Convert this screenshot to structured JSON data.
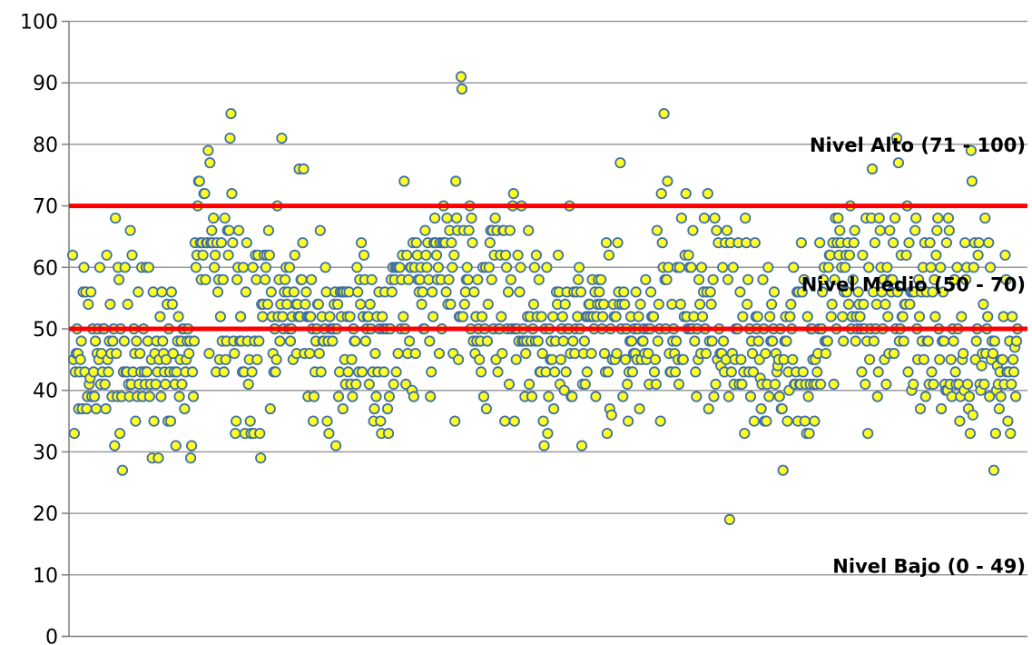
{
  "chart_data": {
    "type": "scatter",
    "title": "",
    "xlabel": "",
    "ylabel": "",
    "ylim": [
      0,
      100
    ],
    "yticks": [
      0,
      10,
      20,
      30,
      40,
      50,
      60,
      70,
      80,
      90,
      100
    ],
    "grid": true,
    "colors": {
      "marker_fill": "#ffff22",
      "marker_edge": "#3f6fa8",
      "reference_line": "#ff0000",
      "grid": "#9a9a9a"
    },
    "reference_lines": [
      70,
      50
    ],
    "annotations": [
      {
        "text": "Nivel  Alto (71 - 100)",
        "y": 80
      },
      {
        "text": "Nivel  Medio (50 - 70)",
        "y": 57.3
      },
      {
        "text": "Nivel  Bajo (0 - 49)",
        "y": 11.5
      }
    ],
    "series": [
      {
        "values": [
          62,
          45,
          33,
          43,
          46,
          50,
          46,
          37,
          43,
          45,
          48,
          37,
          56,
          60,
          43,
          56,
          37,
          39,
          54,
          41,
          42,
          56,
          39,
          50,
          43,
          39,
          48,
          37,
          46,
          50,
          45,
          60,
          41,
          46,
          43,
          50,
          50,
          41,
          37,
          62,
          45,
          43,
          48,
          54,
          46,
          39,
          48,
          50,
          31,
          68,
          46,
          39,
          60,
          58,
          33,
          50,
          39,
          27,
          43,
          48,
          60,
          43,
          43,
          54,
          41,
          39,
          66,
          41,
          62,
          43,
          50,
          46,
          35,
          48,
          39,
          56,
          41,
          46,
          43,
          60,
          39,
          50,
          43,
          41,
          60,
          43,
          48,
          60,
          39,
          41,
          45,
          29,
          56,
          35,
          46,
          41,
          48,
          43,
          29,
          45,
          52,
          39,
          56,
          48,
          46,
          43,
          41,
          45,
          54,
          35,
          50,
          43,
          35,
          56,
          54,
          46,
          43,
          41,
          31,
          43,
          48,
          52,
          39,
          45,
          48,
          41,
          50,
          50,
          37,
          43,
          45,
          48,
          50,
          46,
          48,
          29,
          31,
          43,
          39,
          48,
          64,
          60,
          62,
          70,
          74,
          74,
          64,
          58,
          64,
          62,
          72,
          72,
          58,
          64,
          64,
          79,
          46,
          77,
          64,
          66,
          64,
          68,
          60,
          62,
          43,
          64,
          56,
          58,
          45,
          52,
          64,
          48,
          58,
          43,
          68,
          45,
          48,
          66,
          62,
          66,
          81,
          85,
          72,
          64,
          48,
          46,
          33,
          35,
          58,
          60,
          66,
          48,
          52,
          48,
          43,
          60,
          43,
          33,
          56,
          64,
          48,
          41,
          45,
          35,
          33,
          43,
          60,
          33,
          48,
          62,
          58,
          45,
          62,
          48,
          33,
          29,
          54,
          52,
          54,
          62,
          58,
          60,
          62,
          54,
          66,
          62,
          37,
          56,
          52,
          46,
          43,
          50,
          43,
          45,
          70,
          52,
          58,
          48,
          54,
          81,
          52,
          50,
          56,
          58,
          60,
          54,
          56,
          50,
          60,
          48,
          50,
          52,
          45,
          56,
          62,
          54,
          46,
          54,
          52,
          76,
          52,
          58,
          58,
          64,
          76,
          46,
          54,
          56,
          52,
          39,
          52,
          46,
          52,
          58,
          50,
          35,
          39,
          43,
          48,
          50,
          54,
          54,
          46,
          66,
          43,
          52,
          48,
          48,
          50,
          60,
          56,
          35,
          48,
          33,
          52,
          50,
          50,
          48,
          50,
          54,
          56,
          31,
          50,
          54,
          39,
          43,
          56,
          52,
          56,
          37,
          56,
          45,
          41,
          56,
          52,
          43,
          56,
          52,
          41,
          45,
          39,
          50,
          48,
          48,
          41,
          60,
          56,
          43,
          58,
          54,
          64,
          43,
          52,
          62,
          58,
          48,
          50,
          52,
          52,
          41,
          54,
          50,
          58,
          43,
          35,
          37,
          46,
          39,
          52,
          43,
          56,
          50,
          35,
          33,
          52,
          50,
          43,
          56,
          50,
          50,
          37,
          33,
          39,
          50,
          58,
          56,
          60,
          41,
          58,
          60,
          43,
          60,
          46,
          60,
          60,
          50,
          58,
          62,
          52,
          74,
          50,
          41,
          62,
          46,
          58,
          48,
          60,
          60,
          40,
          64,
          39,
          60,
          46,
          64,
          62,
          58,
          56,
          58,
          60,
          54,
          56,
          50,
          50,
          66,
          62,
          60,
          64,
          58,
          48,
          39,
          43,
          56,
          52,
          64,
          68,
          64,
          62,
          58,
          60,
          46,
          64,
          58,
          50,
          64,
          70,
          64,
          64,
          56,
          68,
          54,
          58,
          66,
          54,
          64,
          60,
          46,
          62,
          35,
          74,
          68,
          66,
          45,
          52,
          52,
          91,
          89,
          52,
          66,
          54,
          56,
          58,
          60,
          58,
          66,
          70,
          50,
          68,
          64,
          48,
          56,
          46,
          52,
          48,
          58,
          50,
          45,
          48,
          43,
          52,
          60,
          39,
          50,
          60,
          37,
          48,
          54,
          60,
          64,
          66,
          58,
          66,
          50,
          62,
          68,
          45,
          66,
          43,
          50,
          50,
          62,
          52,
          46,
          66,
          66,
          35,
          62,
          60,
          50,
          56,
          41,
          66,
          58,
          50,
          70,
          72,
          35,
          50,
          45,
          50,
          62,
          48,
          56,
          60,
          70,
          48,
          50,
          48,
          39,
          46,
          48,
          52,
          66,
          41,
          52,
          48,
          39,
          50,
          54,
          60,
          48,
          62,
          52,
          48,
          58,
          43,
          43,
          52,
          46,
          35,
          31,
          50,
          43,
          60,
          33,
          39,
          50,
          45,
          48,
          45,
          52,
          37,
          43,
          48,
          56,
          54,
          62,
          56,
          41,
          45,
          50,
          52,
          48,
          40,
          54,
          43,
          56,
          50,
          50,
          70,
          46,
          39,
          39,
          48,
          56,
          46,
          50,
          56,
          52,
          58,
          60,
          50,
          56,
          31,
          41,
          46,
          48,
          41,
          52,
          43,
          52,
          54,
          54,
          52,
          46,
          58,
          52,
          50,
          56,
          39,
          52,
          54,
          58,
          56,
          54,
          58,
          50,
          52,
          54,
          46,
          43,
          64,
          33,
          43,
          62,
          37,
          50,
          36,
          45,
          54,
          52,
          45,
          52,
          46,
          64,
          56,
          54,
          77,
          50,
          54,
          39,
          56,
          54,
          45,
          50,
          41,
          35,
          43,
          48,
          52,
          48,
          43,
          46,
          50,
          46,
          56,
          45,
          50,
          52,
          37,
          54,
          45,
          48,
          48,
          50,
          46,
          58,
          45,
          50,
          46,
          41,
          50,
          56,
          52,
          52,
          52,
          43,
          45,
          41,
          66,
          48,
          54,
          50,
          35,
          72,
          64,
          60,
          85,
          58,
          50,
          58,
          74,
          60,
          46,
          43,
          43,
          54,
          48,
          50,
          46,
          43,
          48,
          60,
          45,
          41,
          60,
          54,
          68,
          45,
          45,
          52,
          62,
          72,
          52,
          50,
          62,
          60,
          50,
          60,
          50,
          66,
          52,
          48,
          43,
          39,
          50,
          45,
          58,
          54,
          46,
          60,
          52,
          56,
          68,
          50,
          46,
          56,
          72,
          37,
          48,
          56,
          54,
          48,
          58,
          39,
          68,
          41,
          66,
          45,
          64,
          50,
          46,
          44,
          46,
          60,
          48,
          43,
          64,
          45,
          66,
          58,
          39,
          19,
          64,
          43,
          46,
          60,
          41,
          45,
          50,
          50,
          50,
          64,
          41,
          56,
          45,
          41,
          52,
          43,
          33,
          68,
          64,
          54,
          58,
          43,
          50,
          39,
          48,
          46,
          43,
          35,
          64,
          52,
          50,
          52,
          48,
          45,
          42,
          37,
          41,
          58,
          50,
          35,
          46,
          35,
          41,
          60,
          39,
          52,
          48,
          54,
          48,
          50,
          56,
          41,
          46,
          43,
          44,
          45,
          39,
          50,
          37,
          37,
          27,
          45,
          48,
          52,
          48,
          35,
          43,
          40,
          52,
          54,
          50,
          45,
          60,
          41,
          41,
          43,
          56,
          35,
          56,
          41,
          41,
          64,
          56,
          43,
          58,
          35,
          41,
          33,
          52,
          39,
          33,
          41,
          50,
          50,
          45,
          41,
          35,
          45,
          41,
          43,
          46,
          50,
          64,
          41,
          50,
          56,
          58,
          60,
          48,
          46,
          48,
          48,
          60,
          62,
          62,
          52,
          54,
          64,
          41,
          58,
          68,
          50,
          64,
          68,
          62,
          66,
          64,
          60,
          52,
          48,
          56,
          60,
          62,
          56,
          64,
          54,
          62,
          70,
          50,
          52,
          58,
          64,
          66,
          48,
          52,
          50,
          56,
          54,
          52,
          50,
          43,
          62,
          54,
          50,
          41,
          68,
          48,
          33,
          60,
          45,
          50,
          68,
          76,
          56,
          48,
          64,
          50,
          54,
          39,
          43,
          68,
          66,
          60,
          56,
          50,
          58,
          45,
          54,
          41,
          60,
          52,
          46,
          66,
          58,
          56,
          58,
          64,
          46,
          68,
          50,
          81,
          56,
          77,
          48,
          50,
          62,
          52,
          52,
          48,
          54,
          54,
          62,
          70,
          43,
          64,
          54,
          56,
          40,
          56,
          41,
          56,
          66,
          68,
          50,
          45,
          58,
          52,
          37,
          56,
          48,
          60,
          45,
          64,
          39,
          56,
          48,
          48,
          41,
          64,
          60,
          43,
          56,
          41,
          58,
          52,
          62,
          66,
          68,
          50,
          45,
          60,
          37,
          48,
          56,
          48,
          41,
          40,
          64,
          40,
          68,
          66,
          41,
          45,
          39,
          50,
          48,
          58,
          43,
          41,
          60,
          50,
          41,
          35,
          39,
          52,
          45,
          46,
          40,
          64,
          58,
          60,
          41,
          37,
          39,
          33,
          79,
          74,
          36,
          60,
          64,
          45,
          48,
          50,
          62,
          64,
          41,
          40,
          44,
          46,
          54,
          41,
          68,
          46,
          50,
          52,
          64,
          39,
          60,
          45,
          48,
          46,
          27,
          48,
          33,
          40,
          44,
          41,
          37,
          43,
          39,
          45,
          45,
          52,
          41,
          62,
          58,
          43,
          35,
          43,
          48,
          33,
          41,
          52,
          45,
          43,
          47,
          39,
          48,
          50
        ]
      }
    ]
  }
}
